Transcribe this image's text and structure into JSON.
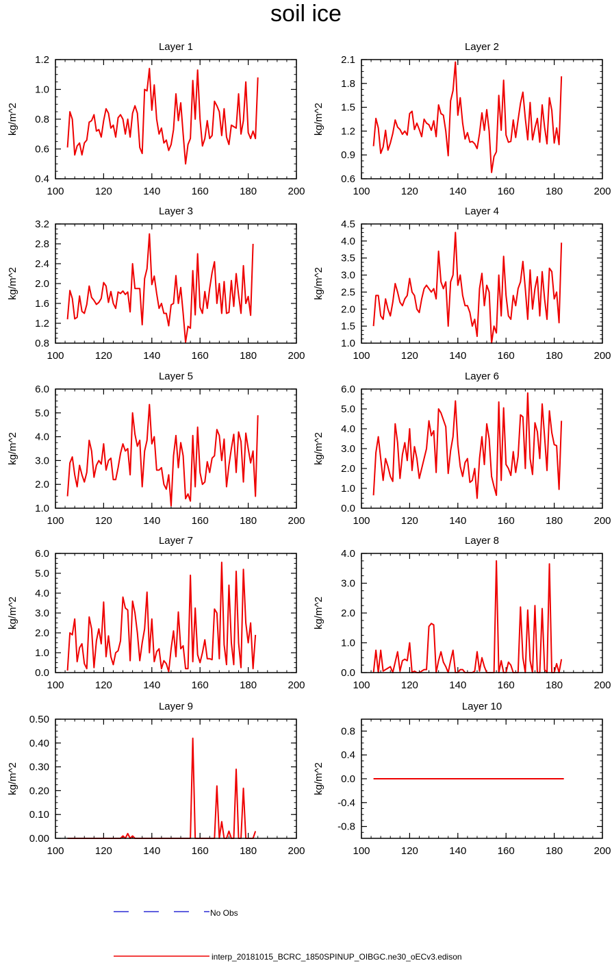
{
  "title": "soil ice",
  "colors": {
    "series": "#ee0000",
    "obs": "#0000cc",
    "axis": "#000000"
  },
  "legend": [
    {
      "label": "No Obs",
      "color": "#0000cc",
      "style": "dashed"
    },
    {
      "label": "interp_20181015_BCRC_1850SPINUP_OIBGC.ne30_oECv3.edison",
      "color": "#ee0000",
      "style": "solid"
    }
  ],
  "chart_data": [
    {
      "type": "line",
      "title": "Layer 1",
      "ylabel": "kg/m^2",
      "xlim": [
        100,
        200
      ],
      "xticks": [
        100,
        120,
        140,
        160,
        180,
        200
      ],
      "ylim": [
        0.4,
        1.2
      ],
      "yticks": [
        0.4,
        0.6,
        0.8,
        1.0,
        1.2
      ],
      "ydec": 1,
      "series": [
        {
          "x_start": 105,
          "values": [
            0.61,
            0.85,
            0.8,
            0.56,
            0.62,
            0.64,
            0.56,
            0.64,
            0.66,
            0.78,
            0.79,
            0.83,
            0.72,
            0.73,
            0.68,
            0.79,
            0.87,
            0.84,
            0.74,
            0.76,
            0.68,
            0.81,
            0.83,
            0.8,
            0.7,
            0.8,
            0.68,
            0.84,
            0.89,
            0.84,
            0.61,
            0.57,
            1.0,
            0.99,
            1.14,
            0.86,
            1.03,
            0.8,
            0.7,
            0.74,
            0.64,
            0.66,
            0.59,
            0.63,
            0.73,
            0.97,
            0.79,
            0.91,
            0.7,
            0.5,
            0.63,
            0.67,
            1.06,
            0.8,
            1.13,
            0.8,
            0.62,
            0.67,
            0.79,
            0.67,
            0.69,
            0.92,
            0.89,
            0.85,
            0.69,
            0.87,
            0.68,
            0.63,
            0.76,
            0.75,
            0.74,
            0.97,
            0.7,
            0.79,
            1.05,
            0.71,
            0.67,
            0.72,
            0.67,
            1.08
          ]
        }
      ]
    },
    {
      "type": "line",
      "title": "Layer 2",
      "ylabel": "kg/m^2",
      "xlim": [
        100,
        200
      ],
      "xticks": [
        100,
        120,
        140,
        160,
        180,
        200
      ],
      "ylim": [
        0.6,
        2.1
      ],
      "yticks": [
        0.6,
        0.9,
        1.2,
        1.5,
        1.8,
        2.1
      ],
      "ydec": 1,
      "series": [
        {
          "x_start": 105,
          "values": [
            1.01,
            1.36,
            1.24,
            0.92,
            1.0,
            1.21,
            0.96,
            1.05,
            1.17,
            1.34,
            1.25,
            1.22,
            1.16,
            1.2,
            1.15,
            1.42,
            1.45,
            1.22,
            1.3,
            1.22,
            1.13,
            1.35,
            1.3,
            1.28,
            1.21,
            1.33,
            1.13,
            1.53,
            1.42,
            1.4,
            1.2,
            0.89,
            1.58,
            1.71,
            2.07,
            1.4,
            1.62,
            1.3,
            1.1,
            1.18,
            1.06,
            1.07,
            1.04,
            0.98,
            1.17,
            1.43,
            1.21,
            1.47,
            1.2,
            0.68,
            0.88,
            0.94,
            1.65,
            1.21,
            1.84,
            1.15,
            1.06,
            1.07,
            1.34,
            1.12,
            1.34,
            1.55,
            1.69,
            1.36,
            1.09,
            1.56,
            1.09,
            1.24,
            1.36,
            1.06,
            1.53,
            1.25,
            1.04,
            1.62,
            1.46,
            1.05,
            1.24,
            1.03,
            1.89
          ]
        }
      ]
    },
    {
      "type": "line",
      "title": "Layer 3",
      "ylabel": "kg/m^2",
      "xlim": [
        100,
        200
      ],
      "xticks": [
        100,
        120,
        140,
        160,
        180,
        200
      ],
      "ylim": [
        0.8,
        3.2
      ],
      "yticks": [
        0.8,
        1.2,
        1.6,
        2.0,
        2.4,
        2.8,
        3.2
      ],
      "ydec": 1,
      "series": [
        {
          "x_start": 105,
          "values": [
            1.28,
            1.86,
            1.7,
            1.29,
            1.32,
            1.75,
            1.44,
            1.4,
            1.58,
            1.95,
            1.72,
            1.66,
            1.58,
            1.62,
            1.7,
            2.02,
            1.95,
            1.62,
            1.84,
            1.6,
            1.5,
            1.83,
            1.8,
            1.85,
            1.78,
            1.83,
            1.43,
            2.4,
            1.9,
            1.9,
            1.9,
            1.17,
            2.1,
            2.3,
            3.0,
            1.98,
            2.15,
            1.8,
            1.5,
            1.6,
            1.4,
            1.4,
            1.15,
            1.57,
            1.6,
            2.16,
            1.6,
            1.92,
            1.4,
            0.82,
            1.14,
            1.1,
            2.26,
            1.37,
            2.6,
            1.52,
            1.4,
            1.84,
            1.5,
            1.9,
            2.22,
            2.44,
            1.6,
            2.0,
            1.4,
            2.04,
            1.4,
            1.42,
            2.06,
            1.54,
            2.2,
            1.77,
            1.4,
            2.36,
            1.6,
            1.74,
            1.36,
            2.8
          ]
        }
      ]
    },
    {
      "type": "line",
      "title": "Layer 4",
      "ylabel": "kg/m^2",
      "xlim": [
        100,
        200
      ],
      "xticks": [
        100,
        120,
        140,
        160,
        180,
        200
      ],
      "ylim": [
        1.0,
        4.5
      ],
      "yticks": [
        1.0,
        1.5,
        2.0,
        2.5,
        3.0,
        3.5,
        4.0,
        4.5
      ],
      "ydec": 1,
      "series": [
        {
          "x_start": 105,
          "values": [
            1.5,
            2.4,
            2.4,
            1.8,
            1.7,
            2.3,
            2.0,
            1.8,
            2.2,
            2.75,
            2.5,
            2.2,
            2.1,
            2.3,
            2.4,
            2.9,
            2.5,
            2.4,
            2.0,
            1.9,
            2.3,
            2.6,
            2.7,
            2.6,
            2.5,
            2.6,
            2.3,
            3.7,
            2.8,
            2.6,
            2.8,
            1.5,
            2.8,
            3.0,
            4.25,
            2.7,
            3.0,
            2.4,
            2.1,
            2.1,
            1.9,
            1.5,
            1.7,
            1.2,
            2.6,
            3.05,
            2.1,
            2.7,
            2.5,
            1.0,
            1.5,
            1.3,
            3.0,
            1.8,
            3.55,
            2.4,
            1.8,
            1.7,
            2.4,
            2.1,
            2.6,
            2.8,
            3.4,
            2.6,
            1.7,
            3.15,
            2.0,
            2.6,
            2.95,
            1.8,
            3.1,
            2.3,
            1.7,
            3.2,
            3.1,
            2.3,
            2.5,
            1.6,
            3.95
          ]
        }
      ]
    },
    {
      "type": "line",
      "title": "Layer 5",
      "ylabel": "kg/m^2",
      "xlim": [
        100,
        200
      ],
      "xticks": [
        100,
        120,
        140,
        160,
        180,
        200
      ],
      "ylim": [
        1.0,
        6.0
      ],
      "yticks": [
        1.0,
        2.0,
        3.0,
        4.0,
        5.0,
        6.0
      ],
      "ydec": 1,
      "series": [
        {
          "x_start": 105,
          "values": [
            1.5,
            2.9,
            3.15,
            2.4,
            1.9,
            2.8,
            2.4,
            2.1,
            2.5,
            3.85,
            3.4,
            2.3,
            2.8,
            3.0,
            2.85,
            3.7,
            2.6,
            3.0,
            3.1,
            2.2,
            2.2,
            2.7,
            3.3,
            3.7,
            3.4,
            3.5,
            2.4,
            5.0,
            4.1,
            3.6,
            3.85,
            1.9,
            3.4,
            3.85,
            5.35,
            3.7,
            4.0,
            2.6,
            2.6,
            2.7,
            2.0,
            1.8,
            2.4,
            1.1,
            3.2,
            4.05,
            2.7,
            3.75,
            3.2,
            1.4,
            1.6,
            1.3,
            4.05,
            1.9,
            4.4,
            2.5,
            2.0,
            2.1,
            2.95,
            2.5,
            3.1,
            3.2,
            4.3,
            4.05,
            3.0,
            3.9,
            1.9,
            2.8,
            3.5,
            4.1,
            2.5,
            4.2,
            3.8,
            2.1,
            4.15,
            3.5,
            2.9,
            3.4,
            1.5,
            4.9
          ]
        }
      ]
    },
    {
      "type": "line",
      "title": "Layer 6",
      "ylabel": "kg/m^2",
      "xlim": [
        100,
        200
      ],
      "xticks": [
        100,
        120,
        140,
        160,
        180,
        200
      ],
      "ylim": [
        0.0,
        6.0
      ],
      "yticks": [
        0.0,
        1.0,
        2.0,
        3.0,
        4.0,
        5.0,
        6.0
      ],
      "ydec": 1,
      "series": [
        {
          "x_start": 105,
          "values": [
            0.65,
            2.8,
            3.6,
            2.5,
            1.4,
            2.5,
            2.1,
            1.6,
            1.35,
            4.25,
            3.3,
            1.5,
            2.7,
            3.3,
            2.4,
            4.0,
            1.9,
            3.1,
            2.5,
            1.5,
            2.0,
            2.5,
            3.0,
            4.4,
            3.65,
            3.9,
            1.8,
            5.0,
            4.8,
            4.45,
            4.1,
            1.75,
            2.9,
            3.6,
            5.4,
            3.2,
            2.1,
            1.6,
            2.3,
            2.5,
            1.3,
            1.4,
            2.0,
            0.5,
            2.5,
            3.6,
            2.2,
            4.25,
            3.5,
            1.6,
            1.1,
            0.65,
            5.35,
            1.4,
            5.05,
            2.2,
            2.0,
            1.65,
            2.85,
            1.8,
            2.6,
            4.7,
            4.6,
            2.0,
            5.8,
            2.5,
            1.7,
            4.3,
            3.85,
            2.5,
            5.25,
            3.6,
            1.9,
            4.9,
            3.8,
            3.2,
            3.15,
            0.95,
            4.4
          ]
        }
      ]
    },
    {
      "type": "line",
      "title": "Layer 7",
      "ylabel": "kg/m^2",
      "xlim": [
        100,
        200
      ],
      "xticks": [
        100,
        120,
        140,
        160,
        180,
        200
      ],
      "ylim": [
        0.0,
        6.0
      ],
      "yticks": [
        0.0,
        1.0,
        2.0,
        3.0,
        4.0,
        5.0,
        6.0
      ],
      "ydec": 1,
      "series": [
        {
          "x_start": 105,
          "values": [
            0.1,
            2.0,
            1.9,
            2.7,
            0.55,
            1.25,
            1.45,
            0.45,
            0.2,
            2.8,
            2.2,
            0.25,
            1.6,
            2.2,
            1.45,
            3.55,
            0.8,
            1.85,
            0.8,
            0.4,
            1.0,
            1.1,
            1.6,
            3.8,
            3.25,
            3.15,
            0.6,
            3.6,
            3.0,
            2.0,
            0.6,
            1.5,
            2.2,
            4.05,
            1.0,
            2.7,
            0.55,
            1.05,
            1.2,
            0.2,
            0.6,
            0.45,
            0.05,
            1.2,
            2.1,
            0.8,
            3.05,
            1.2,
            1.35,
            0.2,
            0.2,
            4.9,
            0.55,
            3.25,
            0.9,
            0.5,
            1.0,
            1.65,
            0.7,
            0.7,
            0.65,
            3.2,
            3.0,
            0.7,
            5.55,
            1.4,
            0.4,
            4.4,
            1.5,
            0.4,
            5.1,
            1.5,
            0.25,
            5.2,
            2.5,
            1.5,
            2.5,
            0.2,
            1.9
          ]
        }
      ]
    },
    {
      "type": "line",
      "title": "Layer 8",
      "ylabel": "kg/m^2",
      "xlim": [
        100,
        200
      ],
      "xticks": [
        100,
        120,
        140,
        160,
        180,
        200
      ],
      "ylim": [
        0.0,
        4.0
      ],
      "yticks": [
        0.0,
        1.0,
        2.0,
        3.0,
        4.0
      ],
      "ydec": 1,
      "series": [
        {
          "x_start": 105,
          "values": [
            0.0,
            0.75,
            0.0,
            0.75,
            0.05,
            0.1,
            0.15,
            0.2,
            0.0,
            0.35,
            0.7,
            0.05,
            0.4,
            0.45,
            0.4,
            1.0,
            0.0,
            0.05,
            0.0,
            0.0,
            0.05,
            0.1,
            0.1,
            1.55,
            1.65,
            1.6,
            0.0,
            0.4,
            0.7,
            0.35,
            0.2,
            0.0,
            0.4,
            0.75,
            0.0,
            0.0,
            0.1,
            0.1,
            0.0,
            0.0,
            0.0,
            0.0,
            0.05,
            0.7,
            0.05,
            0.5,
            0.2,
            0.0,
            0.0,
            0.0,
            0.0,
            3.75,
            0.0,
            0.4,
            0.0,
            0.0,
            0.35,
            0.25,
            0.0,
            0.0,
            0.0,
            2.2,
            0.5,
            0.0,
            2.1,
            0.4,
            0.0,
            2.25,
            0.0,
            0.0,
            2.15,
            0.1,
            0.0,
            3.65,
            0.0,
            0.0,
            0.3,
            0.0,
            0.45
          ]
        }
      ]
    },
    {
      "type": "line",
      "title": "Layer 9",
      "ylabel": "kg/m^2",
      "xlim": [
        100,
        200
      ],
      "xticks": [
        100,
        120,
        140,
        160,
        180,
        200
      ],
      "ylim": [
        0.0,
        0.5
      ],
      "yticks": [
        0.0,
        0.1,
        0.2,
        0.3,
        0.4,
        0.5
      ],
      "ydec": 2,
      "series": [
        {
          "x_start": 105,
          "values": [
            0.0,
            0.0,
            0.0,
            0.0,
            0.0,
            0.0,
            0.0,
            0.0,
            0.0,
            0.0,
            0.0,
            0.0,
            0.0,
            0.0,
            0.0,
            0.0,
            0.0,
            0.0,
            0.0,
            0.0,
            0.0,
            0.0,
            0.0,
            0.01,
            0.0,
            0.02,
            0.0,
            0.01,
            0.0,
            0.0,
            0.0,
            0.0,
            0.0,
            0.0,
            0.0,
            0.0,
            0.0,
            0.0,
            0.0,
            0.0,
            0.0,
            0.0,
            0.0,
            0.0,
            0.0,
            0.0,
            0.0,
            0.0,
            0.0,
            0.0,
            0.0,
            0.0,
            0.42,
            0.0,
            0.0,
            0.0,
            0.0,
            0.0,
            0.0,
            0.0,
            0.0,
            0.0,
            0.22,
            0.0,
            0.07,
            0.0,
            0.0,
            0.03,
            0.0,
            0.0,
            0.29,
            0.0,
            0.0,
            0.21,
            0.0,
            0.0,
            0.0,
            0.0,
            0.03
          ]
        }
      ]
    },
    {
      "type": "line",
      "title": "Layer 10",
      "ylabel": "kg/m^2",
      "xlim": [
        100,
        200
      ],
      "xticks": [
        100,
        120,
        140,
        160,
        180,
        200
      ],
      "ylim": [
        -1.0,
        1.0
      ],
      "yticks": [
        -0.8,
        -0.4,
        0.0,
        0.4,
        0.8
      ],
      "ydec": 1,
      "series": [
        {
          "x_start": 105,
          "values": [
            0,
            0,
            0,
            0,
            0,
            0,
            0,
            0,
            0,
            0,
            0,
            0,
            0,
            0,
            0,
            0,
            0,
            0,
            0,
            0,
            0,
            0,
            0,
            0,
            0,
            0,
            0,
            0,
            0,
            0,
            0,
            0,
            0,
            0,
            0,
            0,
            0,
            0,
            0,
            0,
            0,
            0,
            0,
            0,
            0,
            0,
            0,
            0,
            0,
            0,
            0,
            0,
            0,
            0,
            0,
            0,
            0,
            0,
            0,
            0,
            0,
            0,
            0,
            0,
            0,
            0,
            0,
            0,
            0,
            0,
            0,
            0,
            0,
            0,
            0,
            0,
            0,
            0,
            0,
            0
          ]
        }
      ]
    }
  ]
}
